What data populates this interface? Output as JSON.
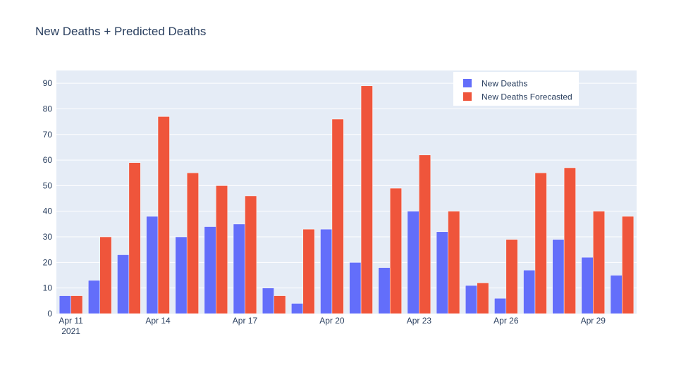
{
  "chart_data": {
    "type": "bar",
    "title": "New Deaths + Predicted Deaths",
    "xlabel": "",
    "ylabel": "",
    "x": [
      "2021-04-11",
      "2021-04-12",
      "2021-04-13",
      "2021-04-14",
      "2021-04-15",
      "2021-04-16",
      "2021-04-17",
      "2021-04-18",
      "2021-04-19",
      "2021-04-20",
      "2021-04-21",
      "2021-04-22",
      "2021-04-23",
      "2021-04-24",
      "2021-04-25",
      "2021-04-26",
      "2021-04-27",
      "2021-04-28",
      "2021-04-29",
      "2021-04-30"
    ],
    "x_ticks": [
      {
        "date": "2021-04-11",
        "label": "Apr 11",
        "sublabel": "2021"
      },
      {
        "date": "2021-04-14",
        "label": "Apr 14",
        "sublabel": ""
      },
      {
        "date": "2021-04-17",
        "label": "Apr 17",
        "sublabel": ""
      },
      {
        "date": "2021-04-20",
        "label": "Apr 20",
        "sublabel": ""
      },
      {
        "date": "2021-04-23",
        "label": "Apr 23",
        "sublabel": ""
      },
      {
        "date": "2021-04-26",
        "label": "Apr 26",
        "sublabel": ""
      },
      {
        "date": "2021-04-29",
        "label": "Apr 29",
        "sublabel": ""
      }
    ],
    "ylim": [
      0,
      95
    ],
    "y_ticks": [
      0,
      10,
      20,
      30,
      40,
      50,
      60,
      70,
      80,
      90
    ],
    "grid": true,
    "legend_position": "top-right",
    "series": [
      {
        "name": "New Deaths",
        "color": "#636efa",
        "values": [
          7,
          13,
          23,
          38,
          30,
          34,
          35,
          10,
          4,
          33,
          20,
          18,
          40,
          32,
          11,
          6,
          17,
          29,
          22,
          15
        ]
      },
      {
        "name": "New Deaths Forecasted",
        "color": "#ef553b",
        "values": [
          7,
          30,
          59,
          77,
          55,
          50,
          46,
          7,
          33,
          76,
          89,
          49,
          62,
          40,
          12,
          29,
          55,
          57,
          40,
          38
        ]
      }
    ],
    "colors": {
      "plot_bg": "#e5ecf6",
      "grid": "#ffffff",
      "text": "#2a3f5f"
    }
  }
}
